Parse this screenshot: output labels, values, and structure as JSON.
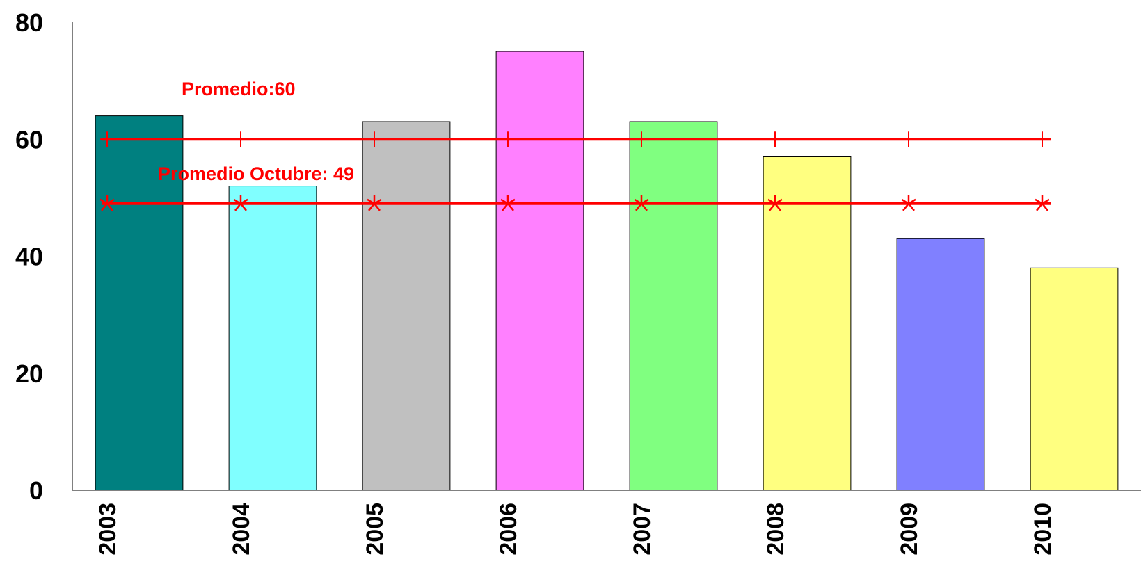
{
  "chart_data": {
    "type": "bar",
    "title": "",
    "xlabel": "",
    "ylabel": "",
    "ylim": [
      0,
      80
    ],
    "yticks": [
      0,
      20,
      40,
      60,
      80
    ],
    "grid": false,
    "categories": [
      "2003",
      "2004",
      "2005",
      "2006",
      "2007",
      "2008",
      "2009",
      "2010"
    ],
    "values": [
      64,
      52,
      63,
      75,
      63,
      57,
      43,
      38
    ],
    "bar_colors": [
      "#008080",
      "#80FFFF",
      "#C0C0C0",
      "#FF80FF",
      "#80FF80",
      "#FFFF80",
      "#8080FF",
      "#FFFF80"
    ],
    "reference_lines": [
      {
        "label": "Promedio:60",
        "value": 60,
        "marker": "plus",
        "color": "#FF0000"
      },
      {
        "label": "Promedio Octubre: 49",
        "value": 49,
        "marker": "asterisk",
        "color": "#FF0000"
      }
    ]
  }
}
